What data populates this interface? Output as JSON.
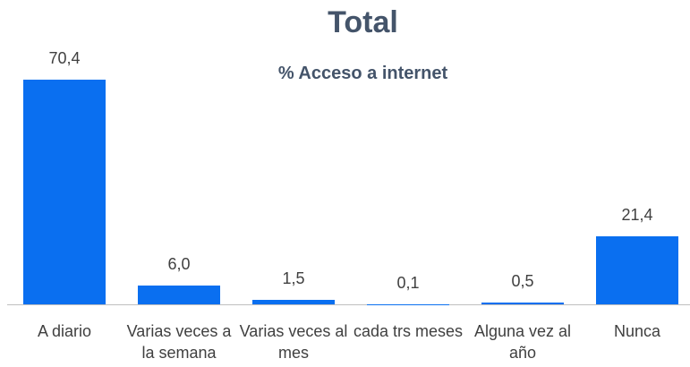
{
  "chart_data": {
    "type": "bar",
    "title": "Total",
    "subtitle": "% Acceso a internet",
    "categories": [
      "A diario",
      "Varias veces a la semana",
      "Varias veces al mes",
      "cada trs meses",
      "Alguna vez al año",
      "Nunca"
    ],
    "values": [
      70.4,
      6.0,
      1.5,
      0.1,
      0.5,
      21.4
    ],
    "value_labels": [
      "70,4",
      "6,0",
      "1,5",
      "0,1",
      "0,5",
      "21,4"
    ],
    "color": "#0a6ff0"
  }
}
